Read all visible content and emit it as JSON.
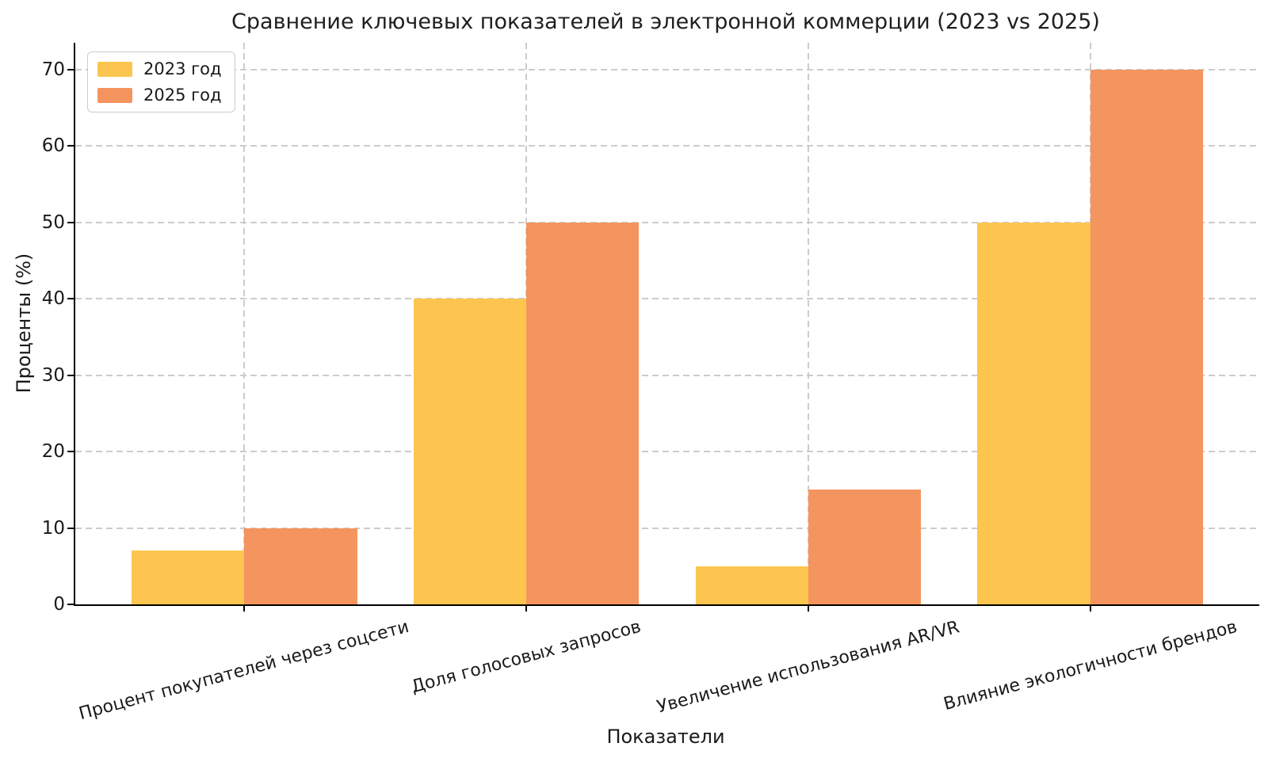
{
  "chart_data": {
    "type": "bar",
    "title": "Сравнение ключевых показателей в электронной коммерции (2023 vs 2025)",
    "xlabel": "Показатели",
    "ylabel": "Проценты (%)",
    "categories": [
      "Процент покупателей через соцсети",
      "Доля голосовых запросов",
      "Увеличение использования AR/VR",
      "Влияние экологичности брендов"
    ],
    "series": [
      {
        "name": "2023 год",
        "color": "#FCC54F",
        "values": [
          7,
          40,
          5,
          50
        ]
      },
      {
        "name": "2025 год",
        "color": "#F4945E",
        "values": [
          10,
          50,
          15,
          70
        ]
      }
    ],
    "yticks": [
      0,
      10,
      20,
      30,
      40,
      50,
      60,
      70
    ],
    "ylim": [
      0,
      73.5
    ],
    "grid": true,
    "grid_style": "dashed",
    "legend_position": "upper left",
    "xtick_rotation": 15
  },
  "colors": {
    "grid": "#cccccc",
    "axis": "#000000",
    "text": "#1a1a1a",
    "background": "#ffffff",
    "legend_border": "#cccccc"
  }
}
